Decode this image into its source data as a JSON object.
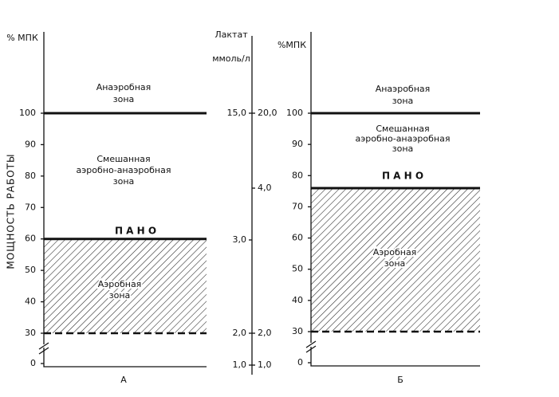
{
  "panels": [
    {
      "y_unit": "% МПК",
      "y_label": "МОЩНОСТЬ РАБОТЫ",
      "yticks": [
        0,
        30,
        40,
        50,
        60,
        70,
        80,
        90,
        100
      ],
      "levels": [
        100,
        60,
        30
      ],
      "zones": {
        "anaerobic": [
          "Анаэробная",
          "зона"
        ],
        "mixed": [
          "Смешанная",
          "аэробно-анаэробная",
          "зона"
        ],
        "threshold": "П А Н О",
        "aerobic": [
          "Аэробная",
          "зона"
        ]
      },
      "caption": "А"
    },
    {
      "y_unit": "%МПК",
      "yticks": [
        0,
        30,
        40,
        50,
        60,
        70,
        80,
        90,
        100
      ],
      "levels": [
        100,
        76,
        30
      ],
      "zones": {
        "anaerobic": [
          "Анаэробная",
          "зона"
        ],
        "mixed": [
          "Смешанная",
          "аэробно-анаэробная",
          "зона"
        ],
        "threshold": "П А Н О",
        "aerobic": [
          "Аэробная",
          "зона"
        ]
      },
      "caption": "Б"
    }
  ],
  "lactate_axis": {
    "title": [
      "Лактат",
      "ммоль/л"
    ],
    "left_ticks": [
      "15,0",
      "3,0",
      "2,0",
      "1,0"
    ],
    "right_ticks": [
      "20,0",
      "4,0",
      "2,0",
      "1,0"
    ]
  }
}
